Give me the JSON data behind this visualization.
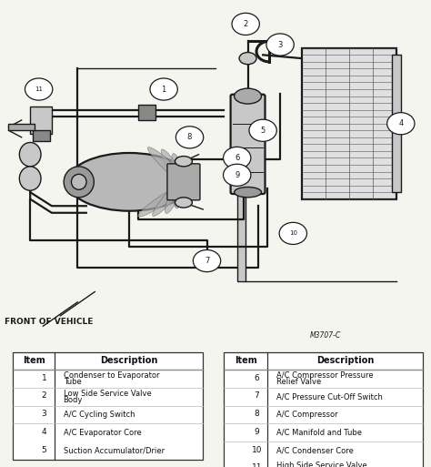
{
  "background_color": "#f5f5f0",
  "diagram_ref": "M3707-C",
  "front_label": "FRONT OF VEHICLE",
  "table1": {
    "headers": [
      "Item",
      "Description"
    ],
    "rows": [
      [
        "1",
        "Condenser to Evaporator\nTube"
      ],
      [
        "2",
        "Low Side Service Valve\nBody"
      ],
      [
        "3",
        "A/C Cycling Switch"
      ],
      [
        "4",
        "A/C Evaporator Core"
      ],
      [
        "5",
        "Suction Accumulator/Drier"
      ]
    ]
  },
  "table2": {
    "headers": [
      "Item",
      "Description"
    ],
    "rows": [
      [
        "6",
        "A/C Compressor Pressure\nRelief Valve"
      ],
      [
        "7",
        "A/C Pressure Cut-Off Switch"
      ],
      [
        "8",
        "A/C Compressor"
      ],
      [
        "9",
        "A/C Manifold and Tube"
      ],
      [
        "10",
        "A/C Condenser Core"
      ],
      [
        "11",
        "High Side Service Valve\nBody"
      ]
    ]
  }
}
